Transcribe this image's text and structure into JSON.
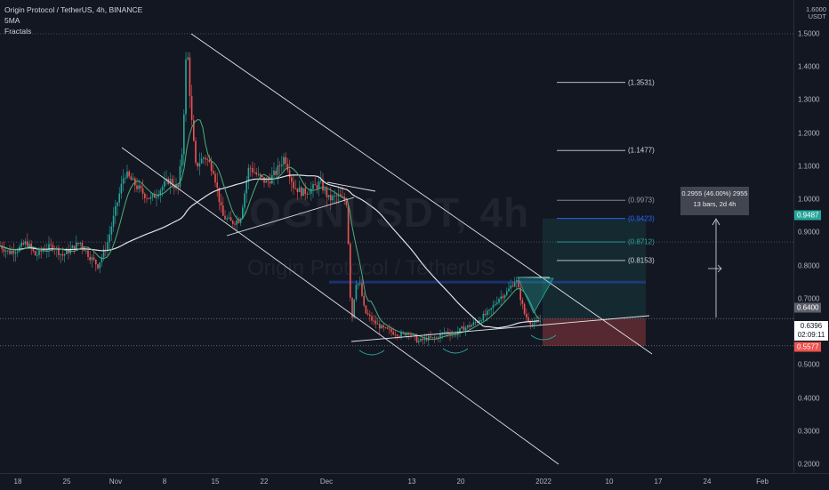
{
  "legend": {
    "title": "Origin Protocol / TetherUS, 4h, BINANCE",
    "ind1": "5MA",
    "ind2": "Fractals"
  },
  "watermark": {
    "symbol": "OGNUSDT, 4h",
    "name": "Origin Protocol / TetherUS"
  },
  "axis": {
    "unit_line1": "1.6000",
    "unit_line2": "USDT"
  },
  "price_tags": {
    "target": "0.9487",
    "current": "0.6400",
    "last": "0.6396",
    "countdown": "02:09:11",
    "stop": "0.5577"
  },
  "measure": {
    "line1": "0.2955 (46.00%) 2955",
    "line2": "13 bars, 2d 4h"
  },
  "fib_levels": [
    {
      "label": "(1.3531)",
      "value": 1.3531,
      "color": "#d1d4dc"
    },
    {
      "label": "(1.1477)",
      "value": 1.1477,
      "color": "#d1d4dc"
    },
    {
      "label": "(0.9973)",
      "value": 0.9973,
      "color": "#9598a1"
    },
    {
      "label": "(0.9423)",
      "value": 0.9423,
      "color": "#2962ff"
    },
    {
      "label": "(0.8712)",
      "value": 0.8712,
      "color": "#26a69a"
    },
    {
      "label": "(0.8153)",
      "value": 0.8153,
      "color": "#d1d4dc"
    }
  ],
  "colors": {
    "bg": "#131722",
    "up": "#26a69a",
    "down": "#ef5350",
    "ma": "#e1e3eb",
    "ma5": "#4caf7a",
    "target_tag": "#26a69a",
    "stop_tag": "#ef5350"
  },
  "chart_data": {
    "type": "line",
    "title": "Origin Protocol / TetherUS, 4h, BINANCE",
    "ylim": [
      0.18,
      1.62
    ],
    "y_ticks": [
      "1.5000",
      "1.4000",
      "1.3000",
      "1.2000",
      "1.1000",
      "1.0000",
      "0.9000",
      "0.8000",
      "0.7000",
      "0.6000",
      "0.5000",
      "0.4000",
      "0.3000",
      "0.2000"
    ],
    "x_ticks": [
      "18",
      "25",
      "Nov",
      "8",
      "15",
      "22",
      "Dec",
      "13",
      "20",
      "2022",
      "10",
      "17",
      "24",
      "Feb"
    ],
    "series": [
      {
        "x": [
          0,
          10,
          20,
          30,
          40,
          50,
          60,
          70,
          80,
          90,
          100,
          110,
          120,
          130,
          140,
          150,
          160,
          170,
          180,
          190,
          200,
          205,
          210,
          215,
          220,
          230,
          240,
          250,
          260,
          270,
          280,
          290,
          300,
          310,
          320,
          330,
          340,
          350,
          360,
          370,
          380,
          390,
          395,
          400,
          405,
          410,
          420,
          430,
          440,
          450,
          460,
          470,
          480,
          490,
          500,
          510,
          520,
          530,
          540,
          550,
          560,
          570,
          580,
          590,
          600,
          605,
          610
        ],
        "values": [
          0.86,
          0.84,
          0.85,
          0.87,
          0.83,
          0.85,
          0.86,
          0.83,
          0.85,
          0.87,
          0.83,
          0.8,
          0.86,
          0.97,
          1.08,
          1.05,
          1.02,
          1.0,
          1.03,
          1.06,
          1.03,
          1.15,
          1.48,
          1.25,
          1.1,
          1.13,
          1.09,
          0.95,
          0.93,
          0.94,
          1.1,
          1.07,
          1.05,
          1.08,
          1.13,
          1.04,
          1.02,
          1.03,
          1.05,
          1.0,
          1.01,
          0.99,
          0.62,
          0.75,
          0.74,
          0.66,
          0.63,
          0.61,
          0.6,
          0.59,
          0.6,
          0.57,
          0.58,
          0.58,
          0.6,
          0.59,
          0.61,
          0.62,
          0.64,
          0.66,
          0.7,
          0.72,
          0.76,
          0.65,
          0.62,
          0.63,
          0.64
        ]
      }
    ]
  }
}
